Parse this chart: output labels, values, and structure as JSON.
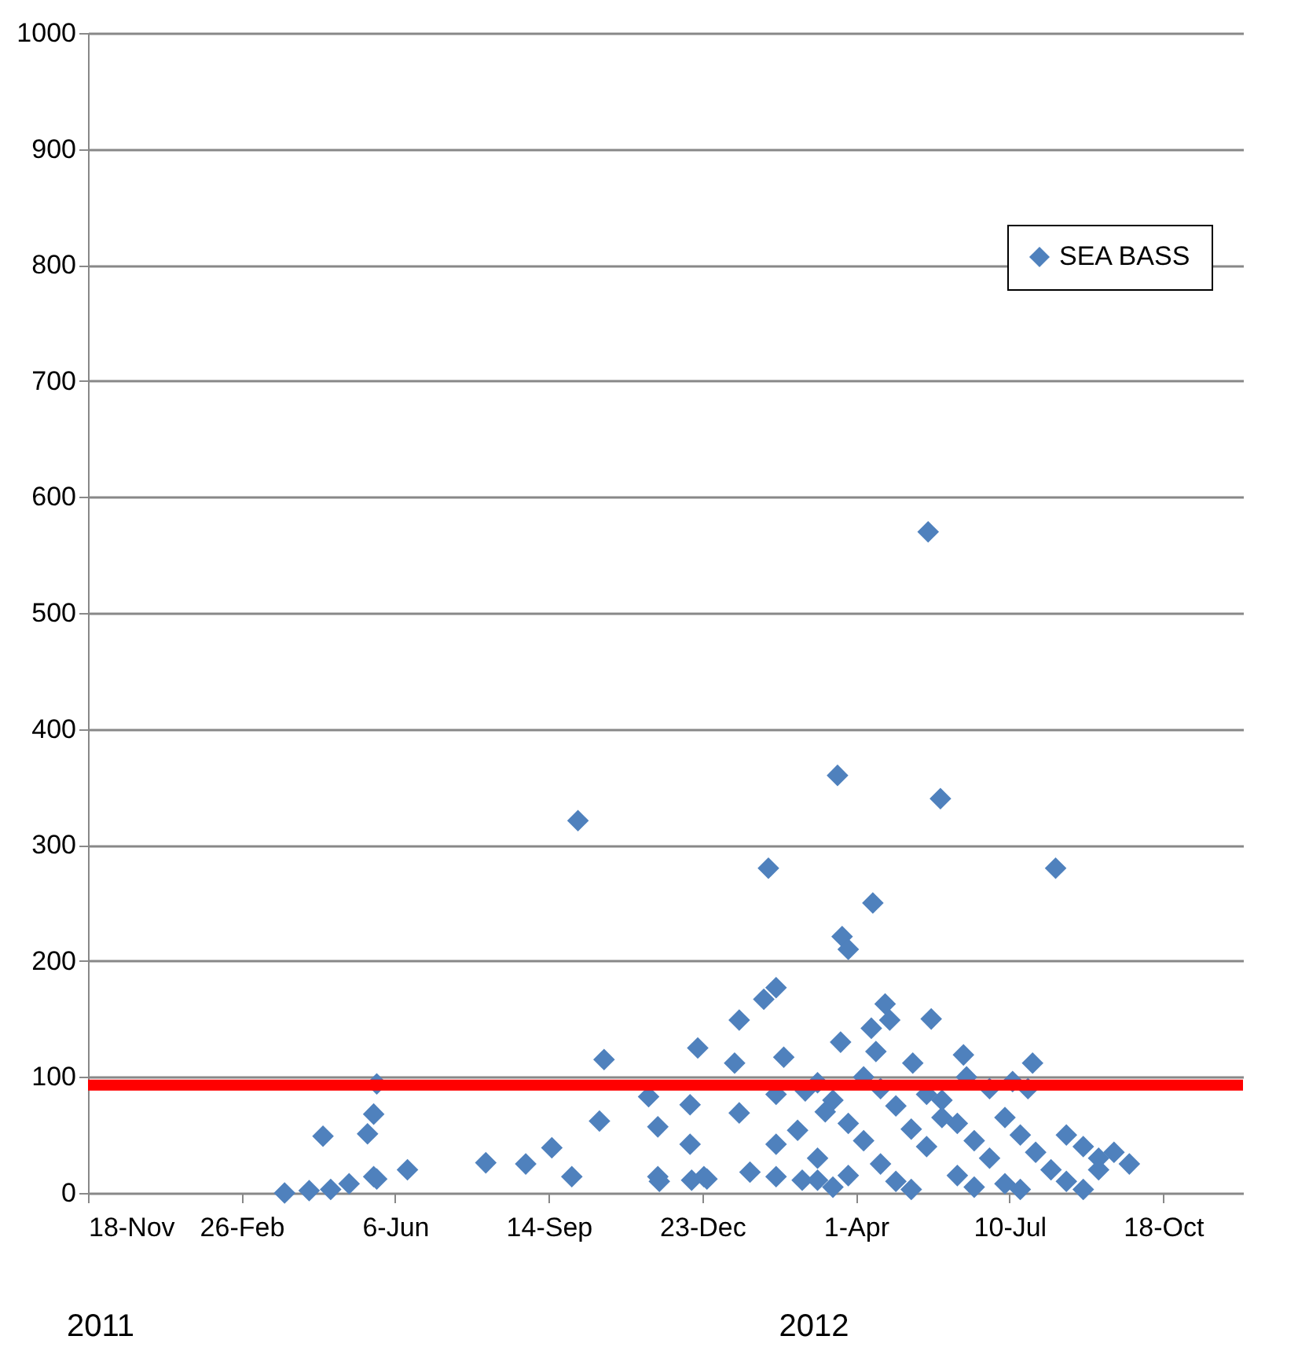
{
  "chart_data": {
    "type": "scatter",
    "x": [
      "2011-03-26",
      "2011-04-11",
      "2011-04-20",
      "2011-04-25",
      "2011-05-07",
      "2011-05-19",
      "2011-05-23",
      "2011-05-25",
      "2011-05-23",
      "2011-05-25",
      "2011-06-14",
      "2011-08-04",
      "2011-08-30",
      "2011-09-16",
      "2011-09-29",
      "2011-10-03",
      "2011-10-17",
      "2011-10-20",
      "2011-11-18",
      "2011-11-24",
      "2011-11-24",
      "2011-11-25",
      "2011-12-15",
      "2011-12-15",
      "2011-12-20",
      "2011-12-16",
      "2011-12-26",
      "2012-05-18",
      "2012-03-20",
      "2012-05-26",
      "2012-02-04",
      "2012-04-12",
      "2012-03-23",
      "2012-03-27",
      "2012-02-09",
      "2012-02-01",
      "2012-01-16",
      "2012-01-13",
      "2012-02-14",
      "2012-04-20",
      "2012-03-22",
      "2012-05-20",
      "2012-04-23",
      "2012-04-11",
      "2012-04-14",
      "2012-05-08",
      "2012-06-10",
      "2012-02-09",
      "2012-02-28",
      "2012-01-16",
      "2012-02-09",
      "2012-02-23",
      "2011-12-24",
      "2012-01-23",
      "2012-02-09",
      "2012-02-26",
      "2012-03-07",
      "2012-08-09",
      "2012-07-25",
      "2012-07-12",
      "2012-03-07",
      "2012-03-07",
      "2012-03-17",
      "2012-03-17",
      "2012-03-27",
      "2012-03-27",
      "2012-04-06",
      "2012-04-06",
      "2012-03-12",
      "2012-04-17",
      "2012-04-17",
      "2012-04-27",
      "2012-04-27",
      "2012-05-07",
      "2012-05-07",
      "2012-05-17",
      "2012-05-17",
      "2012-05-27",
      "2012-05-27",
      "2012-06-06",
      "2012-06-06",
      "2012-06-17",
      "2012-06-17",
      "2012-06-27",
      "2012-06-27",
      "2012-06-12",
      "2012-07-07",
      "2012-07-07",
      "2012-07-17",
      "2012-07-17",
      "2012-07-27",
      "2012-08-06",
      "2012-07-22",
      "2012-08-16",
      "2012-08-16",
      "2012-08-27",
      "2012-08-27",
      "2012-09-06",
      "2012-09-06",
      "2012-09-16",
      "2012-09-26"
    ],
    "series": [
      {
        "name": "SEA BASS",
        "color": "#4f81bd",
        "values": [
          0,
          2,
          49,
          3,
          8,
          51,
          68,
          94,
          14,
          12,
          20,
          26,
          25,
          39,
          14,
          321,
          62,
          115,
          83,
          57,
          14,
          10,
          76,
          42,
          125,
          11,
          12,
          570,
          360,
          340,
          280,
          250,
          221,
          210,
          177,
          167,
          149,
          112,
          117,
          163,
          130,
          150,
          149,
          142,
          122,
          112,
          119,
          85,
          88,
          69,
          42,
          54,
          14,
          18,
          14,
          11,
          11,
          280,
          112,
          96,
          95,
          30,
          80,
          5,
          60,
          15,
          45,
          100,
          70,
          90,
          25,
          75,
          10,
          55,
          3,
          40,
          85,
          65,
          80,
          15,
          60,
          5,
          45,
          30,
          90,
          100,
          65,
          8,
          50,
          3,
          35,
          20,
          90,
          50,
          10,
          40,
          3,
          30,
          20,
          35,
          25
        ]
      }
    ],
    "marker": "diamond",
    "xlim": [
      "2010-11-18",
      "2012-12-09"
    ],
    "xticks": [
      {
        "value": "2010-11-18",
        "label": "18-Nov"
      },
      {
        "value": "2011-02-26",
        "label": "26-Feb"
      },
      {
        "value": "2011-06-06",
        "label": "6-Jun"
      },
      {
        "value": "2011-09-14",
        "label": "14-Sep"
      },
      {
        "value": "2011-12-23",
        "label": "23-Dec"
      },
      {
        "value": "2012-04-01",
        "label": "1-Apr"
      },
      {
        "value": "2012-07-10",
        "label": "10-Jul"
      },
      {
        "value": "2012-10-18",
        "label": "18-Oct"
      }
    ],
    "ylim": [
      0,
      1000
    ],
    "yticks": [
      0,
      100,
      200,
      300,
      400,
      500,
      600,
      700,
      800,
      900,
      1000
    ],
    "grid": "y",
    "legend": "top right",
    "ref_lines": [
      {
        "axis": "y",
        "value": 93,
        "color": "#ff0000"
      }
    ],
    "annotations": [
      "2011",
      "2012"
    ]
  }
}
